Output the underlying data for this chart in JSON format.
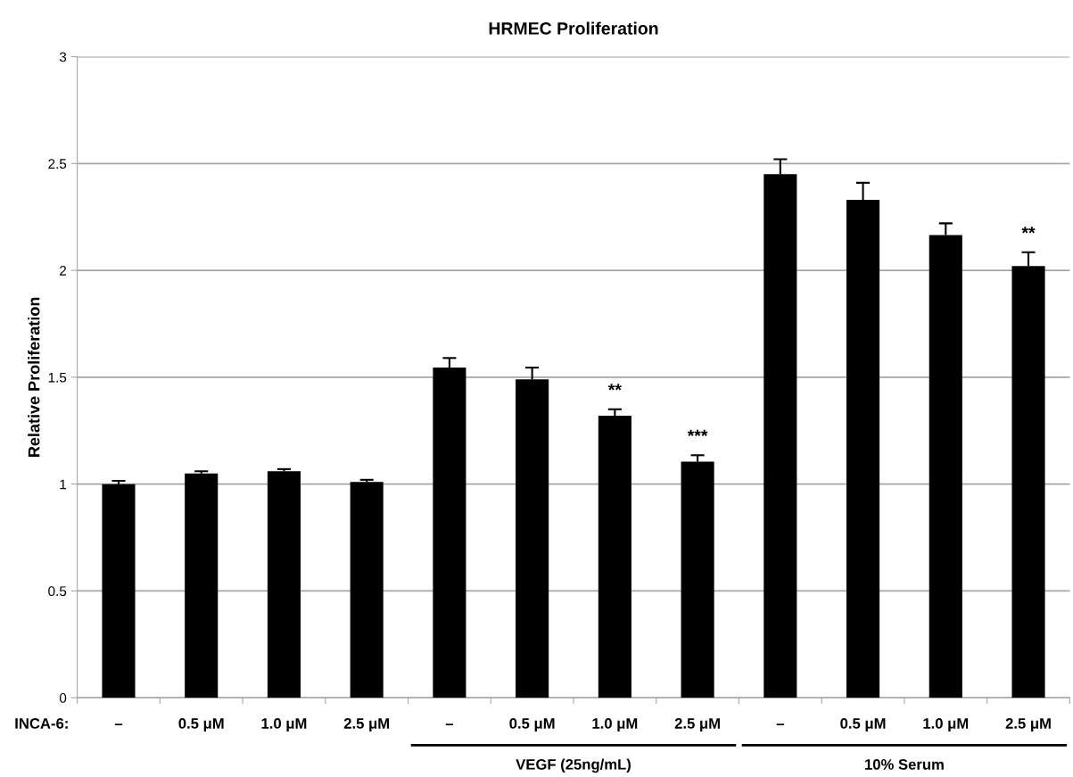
{
  "chart_data": {
    "type": "bar",
    "title": "HRMEC Proliferation",
    "ylabel": "Relative Proliferation",
    "categories": [
      "–",
      "0.5 μM",
      "1.0 μM",
      "2.5 μM",
      "–",
      "0.5 μM",
      "1.0 μM",
      "2.5 μM",
      "–",
      "0.5 μM",
      "1.0 μM",
      "2.5 μM"
    ],
    "values": [
      1.0,
      1.05,
      1.06,
      1.01,
      1.545,
      1.49,
      1.32,
      1.105,
      2.45,
      2.33,
      2.165,
      2.02
    ],
    "errors": [
      [
        1.0,
        1.015
      ],
      [
        1.05,
        1.06
      ],
      [
        1.06,
        1.07
      ],
      [
        1.01,
        1.02
      ],
      [
        1.545,
        1.59
      ],
      [
        1.49,
        1.545
      ],
      [
        1.32,
        1.35
      ],
      [
        1.105,
        1.135
      ],
      [
        2.45,
        2.52
      ],
      [
        2.33,
        2.41
      ],
      [
        2.165,
        2.22
      ],
      [
        2.02,
        2.085
      ]
    ],
    "color": "#000000",
    "ylim": [
      0,
      3
    ],
    "yticks": [
      0,
      0.5,
      1,
      1.5,
      2,
      2.5,
      3
    ],
    "grid": "y",
    "annotations": [
      "INCA-6:",
      "**",
      "***",
      "**",
      "VEGF (25ng/mL)",
      "10% Serum"
    ]
  }
}
